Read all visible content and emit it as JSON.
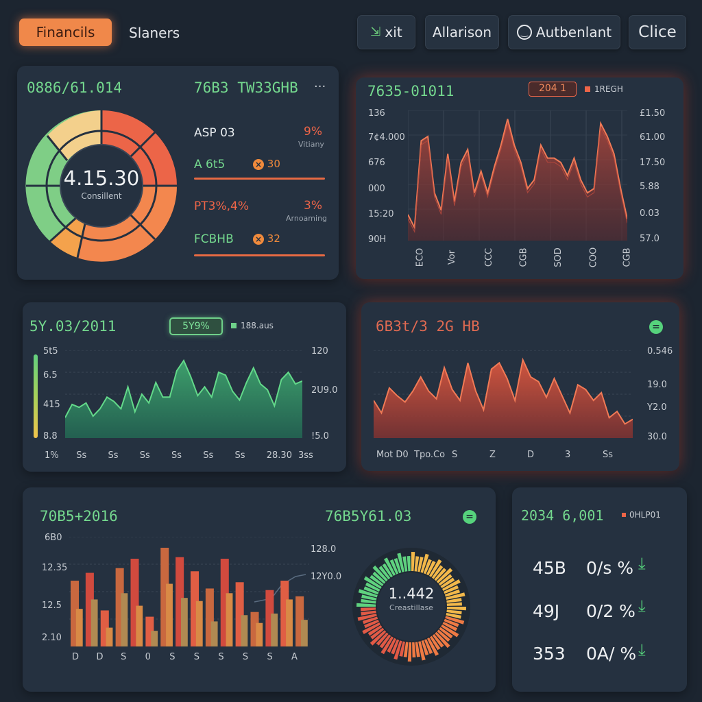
{
  "topbar": {
    "tab_active": "Financils",
    "tab_plain": "Slaners",
    "btn_exit": "xit",
    "btn_exit_icon": "exit-icon",
    "btn_alliance": "Allarison",
    "btn_auth": "Autbenlant",
    "btn_auth_icon": "smile-icon",
    "btn_close": "Clice"
  },
  "donut_panel": {
    "title": "0886/61.014",
    "header_right": "76B3 TW33GHB",
    "menu": "···",
    "center_value": "4.15.30",
    "center_label": "Consillent",
    "rows": [
      {
        "label": "ASP 03",
        "value": "9%",
        "sub": "Vitiany",
        "label_color": "#e8ecef"
      },
      {
        "label": "A 6t5",
        "value": "30",
        "sub": "",
        "label_color": "#74d88e"
      },
      {
        "label": "PT3%,4%",
        "value": "3%",
        "sub": "Arnoaming",
        "label_color": "#ee6548"
      },
      {
        "label": "FCBHB",
        "value": "32",
        "sub": "",
        "label_color": "#74d88e"
      }
    ]
  },
  "red_line_panel": {
    "title": "7635-01011",
    "badge": "204 1",
    "legend": "1REGH",
    "y_left": [
      "136",
      "7¢4.000",
      "676",
      "000",
      "15:20",
      "90H"
    ],
    "y_right": [
      "£1.50",
      "61.00",
      "17.50",
      "5.88",
      "0.03",
      "57.0"
    ],
    "x_labels": [
      "ECO",
      "Vor",
      "CCC",
      "CGB",
      "SOD",
      "COO",
      "CGB"
    ]
  },
  "green_area_panel": {
    "title": "5Y.03/2011",
    "badge": "5Y9%",
    "legend": "188.aus",
    "y_left": [
      "5t5",
      "6.5",
      "415",
      "8.8"
    ],
    "y_right": [
      "120",
      "2U9.0",
      "!5.0"
    ],
    "x_labels": [
      "1%",
      "Ss",
      "Ss",
      "Ss",
      "Ss",
      "Ss",
      "Ss",
      "28.30",
      "3ss"
    ]
  },
  "red_area_panel": {
    "title": "6B3t/3 2G HB",
    "y_right": [
      "0.546",
      "19.0",
      "Y2.0",
      "30.0"
    ],
    "x_labels": [
      "Mot D0",
      "Tpo.Co",
      "S",
      "Z",
      "D",
      "3",
      "Ss"
    ]
  },
  "bar_panel": {
    "title": "70B5+2016",
    "right_title": "76B5Y61.03",
    "y_left": [
      "6B0",
      "12.35",
      "12.5",
      "2.10"
    ],
    "y_right": [
      "128.0",
      "12Y0.0"
    ],
    "x_labels": [
      "D",
      "D",
      "S",
      "0",
      "S",
      "S",
      "S",
      "S",
      "S",
      "A"
    ],
    "ring_value": "1..442",
    "ring_label": "Creastillase"
  },
  "stats_panel": {
    "title": "2034 6,001",
    "legend": "0HLP01",
    "rows": [
      {
        "value": "45B",
        "pct": "0/s %"
      },
      {
        "value": "49J",
        "pct": "0/2 %"
      },
      {
        "value": "353",
        "pct": "0A/ %"
      }
    ]
  },
  "colors": {
    "bg": "#1c2530",
    "panel": "#253140",
    "green": "#74d88e",
    "red": "#ee6548",
    "orange": "#f0884a"
  },
  "chart_data": [
    {
      "type": "line",
      "series": [
        {
          "values": [
            -20,
            -50,
            150,
            160,
            30,
            -10,
            120,
            10,
            100,
            130,
            30,
            80,
            30,
            90,
            140,
            200,
            140,
            100,
            40,
            60,
            140,
            110,
            110,
            100,
            70,
            110,
            60,
            30,
            40,
            190,
            160,
            120,
            40,
            -30
          ]
        }
      ]
    },
    {
      "type": "area",
      "series": [
        {
          "values": [
            1.4,
            2.3,
            2.1,
            2.4,
            1.5,
            2.0,
            2.8,
            2.5,
            2.0,
            3.5,
            1.8,
            3.0,
            2.4,
            3.8,
            2.8,
            2.8,
            4.6,
            5.3,
            4.2,
            2.9,
            3.5,
            2.8,
            4.5,
            4.3,
            3.2,
            2.6,
            3.8,
            4.8,
            3.7,
            3.3,
            2.2,
            4.0,
            4.5,
            3.7,
            3.9
          ]
        }
      ]
    },
    {
      "type": "area",
      "series": [
        {
          "values": [
            2.4,
            1.6,
            3.2,
            2.7,
            2.3,
            3.0,
            3.9,
            3.0,
            2.5,
            4.5,
            3.1,
            2.4,
            4.8,
            3.0,
            1.8,
            4.4,
            4.8,
            3.8,
            2.4,
            5.0,
            3.9,
            3.6,
            2.6,
            3.8,
            2.7,
            1.6,
            3.4,
            3.1,
            2.4,
            2.9,
            1.3,
            1.7,
            0.9,
            1.2
          ]
        }
      ]
    },
    {
      "type": "bar",
      "series": [
        {
          "values": [
            4.2,
            4.7,
            2.3,
            5.0,
            5.6,
            1.9,
            6.3,
            5.7,
            4.8,
            3.7,
            5.6,
            4.1,
            2.2,
            3.6,
            4.2,
            3.2
          ]
        },
        {
          "values": [
            2.4,
            3.0,
            1.2,
            3.4,
            2.6,
            1.0,
            4.0,
            3.1,
            2.9,
            1.6,
            3.4,
            2.0,
            1.5,
            2.1,
            3.0,
            1.7
          ]
        }
      ]
    }
  ]
}
